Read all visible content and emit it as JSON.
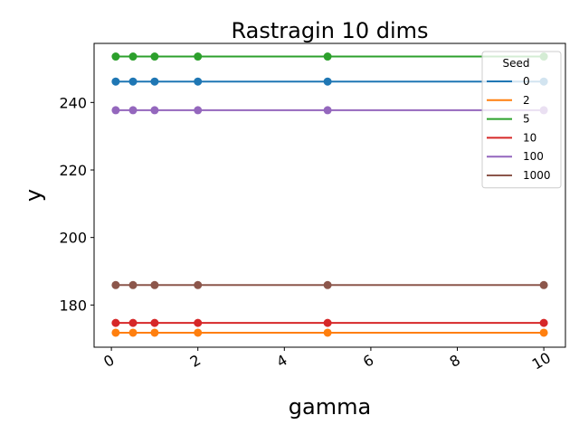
{
  "chart_data": {
    "type": "line",
    "title": "Rastragin 10 dims",
    "xlabel": "gamma",
    "ylabel": "y",
    "x": [
      0.1,
      0.5,
      1,
      2,
      5,
      10
    ],
    "xlim": [
      -0.4,
      10.5
    ],
    "ylim": [
      167.5,
      257.5
    ],
    "xticks": [
      0,
      2,
      4,
      6,
      8,
      10
    ],
    "yticks": [
      180,
      200,
      220,
      240
    ],
    "grid": false,
    "legend": {
      "title": "Seed",
      "placement": "top-right"
    },
    "series": [
      {
        "name": "0",
        "color": "#1f77b4",
        "values": [
          246.2,
          246.2,
          246.2,
          246.2,
          246.2,
          246.2
        ]
      },
      {
        "name": "2",
        "color": "#ff7f0e",
        "values": [
          171.8,
          171.8,
          171.8,
          171.8,
          171.8,
          171.8
        ]
      },
      {
        "name": "5",
        "color": "#2ca02c",
        "values": [
          253.6,
          253.6,
          253.6,
          253.6,
          253.6,
          253.6
        ]
      },
      {
        "name": "10",
        "color": "#d62728",
        "values": [
          174.7,
          174.7,
          174.7,
          174.7,
          174.7,
          174.7
        ]
      },
      {
        "name": "100",
        "color": "#9467bd",
        "values": [
          237.7,
          237.7,
          237.7,
          237.7,
          237.7,
          237.7
        ]
      },
      {
        "name": "1000",
        "color": "#8c564b",
        "values": [
          185.9,
          185.9,
          185.9,
          185.9,
          185.9,
          185.9
        ]
      }
    ]
  }
}
